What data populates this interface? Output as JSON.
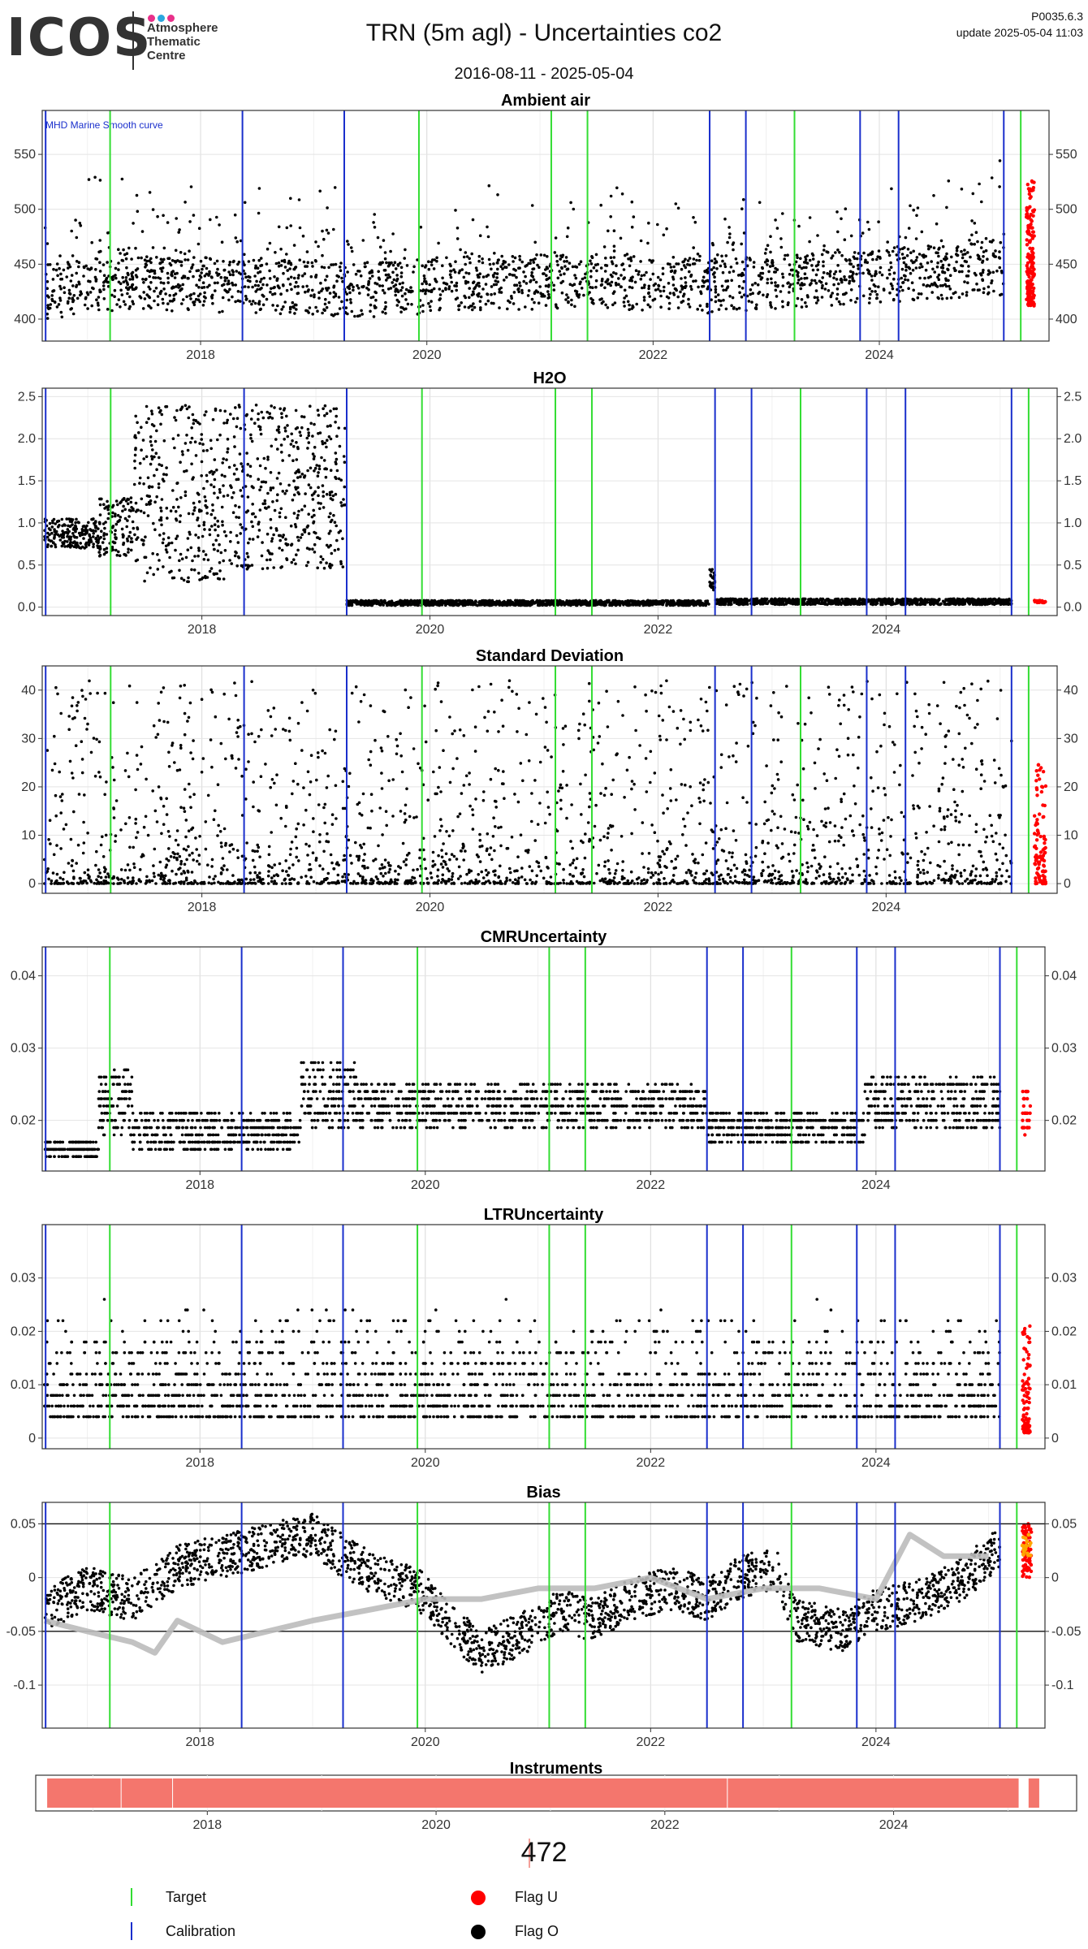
{
  "header": {
    "logo_text": "ICOS",
    "logo_sub": [
      "Atmosphere",
      "Thematic",
      "Centre"
    ],
    "logo_dot_colors": [
      "#e8308a",
      "#2aa7df",
      "#e8308a"
    ],
    "title": "TRN  (5m agl) - Uncertainties co2",
    "date_range": "2016-08-11 - 2025-05-04",
    "version": "P0035.6.3",
    "update": "update  2025-05-04 11:03"
  },
  "colors": {
    "target": "#33dd33",
    "calibration": "#1a2fcc",
    "flag_u": "#ff0000",
    "flag_o": "#000000",
    "smooth": "#bbbbbb",
    "instrument": "#f4766d",
    "bias_orange": "#ffa500"
  },
  "events": {
    "target": [
      2017.2,
      2019.93,
      2021.1,
      2021.42,
      2023.25,
      2025.25
    ],
    "calibration": [
      2016.63,
      2018.37,
      2019.27,
      2022.5,
      2022.82,
      2023.83,
      2024.17,
      2025.1
    ]
  },
  "chart_data": [
    {
      "type": "scatter",
      "title": "Ambient air",
      "annotation": "MHD Marine Smooth curve",
      "x_ticks": [
        2018,
        2020,
        2022,
        2024
      ],
      "y_ticks": [
        400,
        450,
        500,
        550
      ],
      "xlim": [
        2016.6,
        2025.5
      ],
      "ylim": [
        380,
        590
      ],
      "series": [
        {
          "flag": "O",
          "x_range": [
            2016.62,
            2025.1
          ],
          "baseline": [
            [
              2016.6,
              420
            ],
            [
              2017.5,
              428
            ],
            [
              2018.5,
              425
            ],
            [
              2019.5,
              422
            ],
            [
              2020.5,
              428
            ],
            [
              2021.5,
              430
            ],
            [
              2022.5,
              425
            ],
            [
              2023.5,
              432
            ],
            [
              2024.5,
              438
            ],
            [
              2025.1,
              442
            ]
          ],
          "spread_low": 25,
          "spread_high": 110
        },
        {
          "flag": "U",
          "x_range": [
            2025.3,
            2025.37
          ],
          "y_range": [
            412,
            545
          ]
        }
      ]
    },
    {
      "type": "scatter",
      "title": "H2O",
      "x_ticks": [
        2018,
        2020,
        2022,
        2024
      ],
      "y_ticks": [
        0.0,
        0.5,
        1.0,
        1.5,
        2.0,
        2.5
      ],
      "xlim": [
        2016.6,
        2025.5
      ],
      "ylim": [
        -0.1,
        2.6
      ],
      "series": [
        {
          "flag": "O",
          "segments": [
            [
              2016.62,
              2017.1,
              0.7,
              1.05
            ],
            [
              2017.1,
              2017.4,
              0.6,
              1.3
            ],
            [
              2017.4,
              2018.2,
              0.3,
              2.4
            ],
            [
              2018.2,
              2019.27,
              0.45,
              2.4
            ],
            [
              2019.27,
              2022.45,
              0.02,
              0.08
            ],
            [
              2022.45,
              2022.5,
              0.2,
              0.45
            ],
            [
              2022.5,
              2025.1,
              0.03,
              0.1
            ]
          ]
        },
        {
          "flag": "U",
          "x_range": [
            2025.3,
            2025.4
          ],
          "y_range": [
            0.05,
            0.08
          ]
        }
      ]
    },
    {
      "type": "scatter",
      "title": "Standard Deviation",
      "x_ticks": [
        2018,
        2020,
        2022,
        2024
      ],
      "y_ticks": [
        0,
        10,
        20,
        30,
        40
      ],
      "xlim": [
        2016.6,
        2025.5
      ],
      "ylim": [
        -2,
        45
      ],
      "series": [
        {
          "flag": "O",
          "x_range": [
            2016.62,
            2025.1
          ],
          "y_range": [
            0,
            42
          ]
        },
        {
          "flag": "U",
          "x_range": [
            2025.3,
            2025.4
          ],
          "y_range": [
            0,
            25
          ]
        }
      ]
    },
    {
      "type": "scatter",
      "title": "CMRUncertainty",
      "x_ticks": [
        2018,
        2020,
        2022,
        2024
      ],
      "y_ticks": [
        0.02,
        0.03,
        0.04
      ],
      "xlim": [
        2016.6,
        2025.5
      ],
      "ylim": [
        0.013,
        0.044
      ],
      "series": [
        {
          "flag": "O",
          "levels": [
            [
              2016.62,
              2017.1,
              0.015,
              0.017
            ],
            [
              2017.1,
              2017.4,
              0.018,
              0.027
            ],
            [
              2017.4,
              2018.9,
              0.016,
              0.021
            ],
            [
              2018.9,
              2019.4,
              0.019,
              0.028
            ],
            [
              2019.4,
              2022.5,
              0.019,
              0.025
            ],
            [
              2022.5,
              2023.9,
              0.017,
              0.021
            ],
            [
              2023.9,
              2025.1,
              0.019,
              0.026
            ]
          ]
        },
        {
          "flag": "U",
          "x_range": [
            2025.3,
            2025.37
          ],
          "y_range": [
            0.018,
            0.025
          ]
        }
      ]
    },
    {
      "type": "scatter",
      "title": "LTRUncertainty",
      "x_ticks": [
        2018,
        2020,
        2022,
        2024
      ],
      "y_ticks": [
        0.0,
        0.01,
        0.02,
        0.03
      ],
      "xlim": [
        2016.6,
        2025.5
      ],
      "ylim": [
        -0.002,
        0.04
      ],
      "series": [
        {
          "flag": "O",
          "x_range": [
            2016.62,
            2025.1
          ],
          "y_range": [
            0.002,
            0.03
          ]
        },
        {
          "flag": "U",
          "x_range": [
            2025.3,
            2025.37
          ],
          "y_range": [
            0.001,
            0.022
          ]
        }
      ]
    },
    {
      "type": "line",
      "title": "Bias",
      "x_ticks": [
        2018,
        2020,
        2022,
        2024
      ],
      "y_ticks": [
        -0.1,
        -0.05,
        0.0,
        0.05
      ],
      "xlim": [
        2016.6,
        2025.5
      ],
      "ylim": [
        -0.14,
        0.07
      ],
      "hlines": [
        -0.05,
        0.05
      ],
      "series": [
        {
          "name": "",
          "kind": "points",
          "points": [
            [
              2016.62,
              -0.03
            ],
            [
              2017.0,
              -0.01
            ],
            [
              2017.4,
              -0.02
            ],
            [
              2017.8,
              0.01
            ],
            [
              2018.2,
              0.02
            ],
            [
              2018.6,
              0.03
            ],
            [
              2019.0,
              0.04
            ],
            [
              2019.27,
              0.02
            ],
            [
              2019.6,
              0.0
            ],
            [
              2019.93,
              -0.01
            ],
            [
              2020.2,
              -0.04
            ],
            [
              2020.5,
              -0.07
            ],
            [
              2020.9,
              -0.05
            ],
            [
              2021.2,
              -0.03
            ],
            [
              2021.5,
              -0.04
            ],
            [
              2021.8,
              -0.02
            ],
            [
              2022.2,
              -0.01
            ],
            [
              2022.5,
              -0.02
            ],
            [
              2022.8,
              0.0
            ],
            [
              2023.1,
              0.01
            ],
            [
              2023.3,
              -0.04
            ],
            [
              2023.7,
              -0.05
            ],
            [
              2024.0,
              -0.03
            ],
            [
              2024.4,
              -0.02
            ],
            [
              2024.8,
              0.0
            ],
            [
              2025.1,
              0.03
            ]
          ]
        },
        {
          "name": "",
          "kind": "smooth",
          "points": [
            [
              2016.62,
              -0.04
            ],
            [
              2017.0,
              -0.05
            ],
            [
              2017.4,
              -0.06
            ],
            [
              2017.6,
              -0.07
            ],
            [
              2017.8,
              -0.04
            ],
            [
              2018.2,
              -0.06
            ],
            [
              2018.6,
              -0.05
            ],
            [
              2019.0,
              -0.04
            ],
            [
              2019.5,
              -0.03
            ],
            [
              2020.0,
              -0.02
            ],
            [
              2020.5,
              -0.02
            ],
            [
              2021.0,
              -0.01
            ],
            [
              2021.5,
              -0.01
            ],
            [
              2022.0,
              0.0
            ],
            [
              2022.5,
              -0.02
            ],
            [
              2023.0,
              -0.01
            ],
            [
              2023.5,
              -0.01
            ],
            [
              2024.0,
              -0.02
            ],
            [
              2024.3,
              0.04
            ],
            [
              2024.6,
              0.02
            ],
            [
              2025.0,
              0.02
            ]
          ]
        },
        {
          "flag": "U",
          "kind": "points",
          "x_range": [
            2025.3,
            2025.38
          ],
          "y_range": [
            0.0,
            0.05
          ]
        },
        {
          "flag": "orange",
          "kind": "points",
          "x_range": [
            2025.3,
            2025.38
          ],
          "y_range": [
            0.02,
            0.04
          ]
        }
      ]
    },
    {
      "type": "bar",
      "title": "Instruments",
      "x_ticks": [
        2018,
        2020,
        2022,
        2024
      ],
      "xlim": [
        2016.5,
        2025.6
      ],
      "segments": [
        [
          2016.6,
          2017.25
        ],
        [
          2017.25,
          2017.7
        ],
        [
          2017.7,
          2022.55
        ],
        [
          2022.55,
          2025.1
        ],
        [
          2025.18,
          2025.28
        ]
      ]
    }
  ],
  "instruments": {
    "count": "472"
  },
  "legend": {
    "target": "Target",
    "calibration": "Calibration",
    "flag_u": "Flag U",
    "flag_o": "Flag O"
  }
}
